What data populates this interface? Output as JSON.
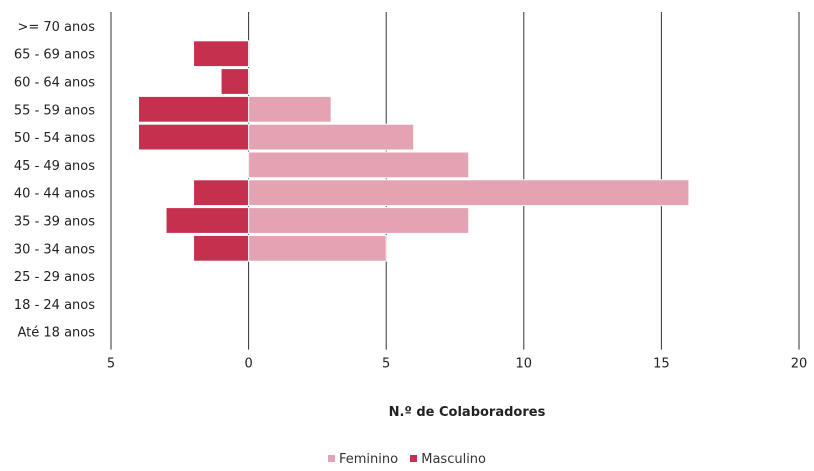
{
  "chart_data": {
    "type": "bar",
    "orientation": "horizontal",
    "stacked": "diverging",
    "categories": [
      ">= 70 anos",
      "65 - 69 anos",
      "60 - 64 anos",
      "55 - 59 anos",
      "50 - 54 anos",
      "45 - 49 anos",
      "40 - 44 anos",
      "35 - 39 anos",
      "30 - 34 anos",
      "25 - 29 anos",
      "18 - 24 anos",
      "Até 18 anos"
    ],
    "series": [
      {
        "name": "Feminino",
        "color": "#e3a3b2",
        "values": [
          0,
          0,
          0,
          3,
          6,
          8,
          16,
          8,
          5,
          0,
          0,
          0
        ]
      },
      {
        "name": "Masculino",
        "color": "#c4304e",
        "values": [
          0,
          2,
          1,
          4,
          4,
          0,
          2,
          3,
          2,
          0,
          0,
          0
        ],
        "direction": "left"
      }
    ],
    "x_ticks": [
      -5,
      0,
      5,
      10,
      15,
      20
    ],
    "x_tick_labels": [
      "5",
      "0",
      "5",
      "10",
      "15",
      "20"
    ],
    "xlim": [
      -5,
      20
    ],
    "xlabel": "N.º de Colaboradores",
    "grid": "vertical",
    "legend_position": "bottom-center"
  }
}
